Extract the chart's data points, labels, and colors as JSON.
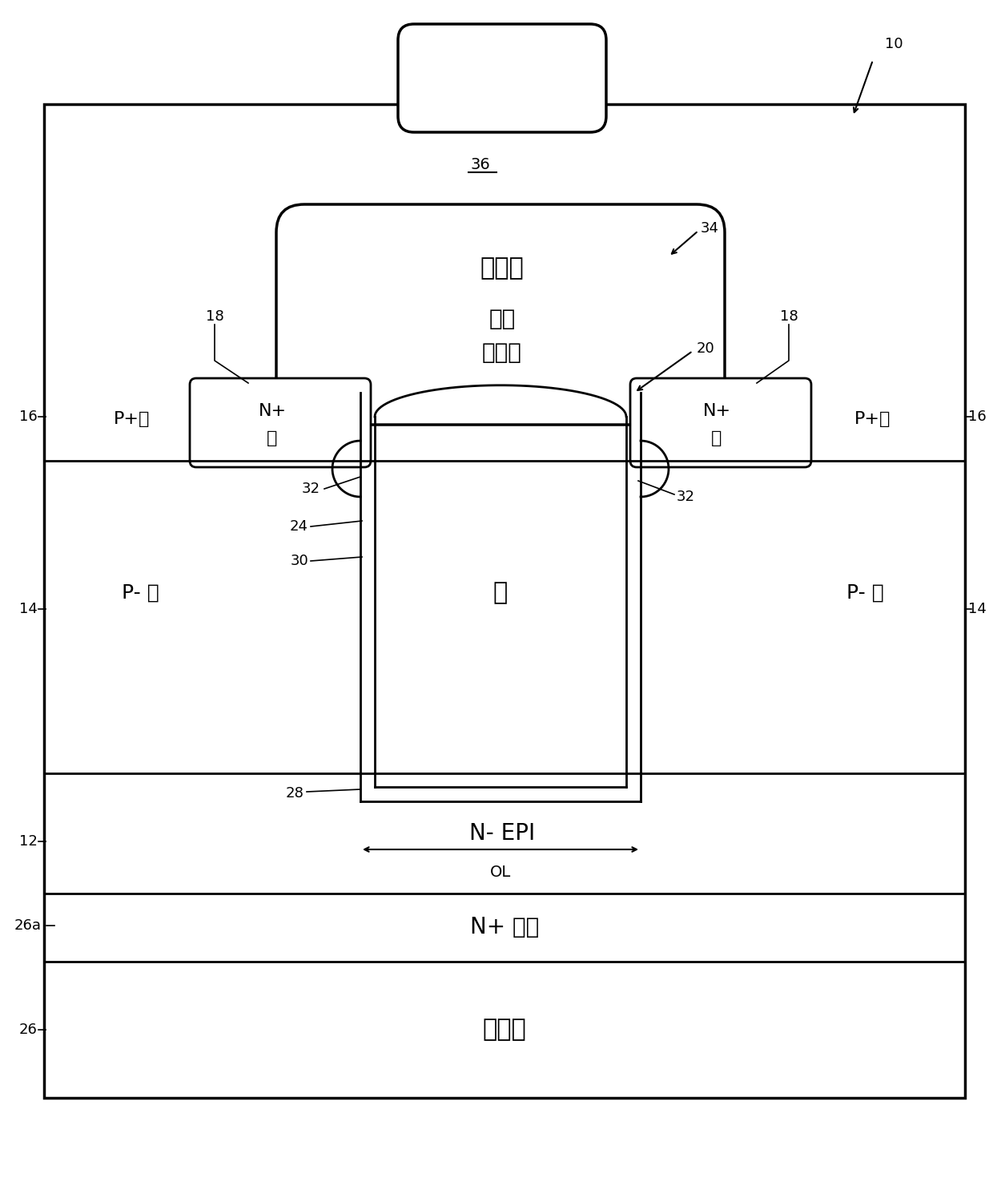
{
  "bg_color": "#ffffff",
  "line_color": "#000000",
  "fig_width": 12.55,
  "fig_height": 14.7,
  "labels": {
    "source_metal": "源金属",
    "drain_metal": "漏金属",
    "intermediate_dielectric_line1": "中间",
    "intermediate_dielectric_line2": "电介质",
    "gate": "栅",
    "n_epi": "N- EPI",
    "n_plus_substrate": "N+ 基片",
    "p_minus_body_left": "P- 阱",
    "p_minus_body_right": "P- 阱",
    "p_plus_body_left": "P+体",
    "p_plus_body_right": "P+体",
    "n_plus_source_left_line1": "N+",
    "n_plus_source_left_line2": "源",
    "n_plus_source_right_line1": "N+",
    "n_plus_source_right_line2": "源",
    "ol_label": "OL"
  },
  "ref_numbers": {
    "r10": "10",
    "r12": "12",
    "r14": "14",
    "r16": "16",
    "r18_left": "18",
    "r18_right": "18",
    "r20": "20",
    "r24": "24",
    "r26": "26",
    "r26a": "26a",
    "r28": "28",
    "r30": "30",
    "r32_left": "32",
    "r32_right": "32",
    "r34": "34",
    "r36": "36"
  },
  "font_size_large": 20,
  "font_size_medium": 16,
  "font_size_small": 14,
  "font_size_ref": 13
}
